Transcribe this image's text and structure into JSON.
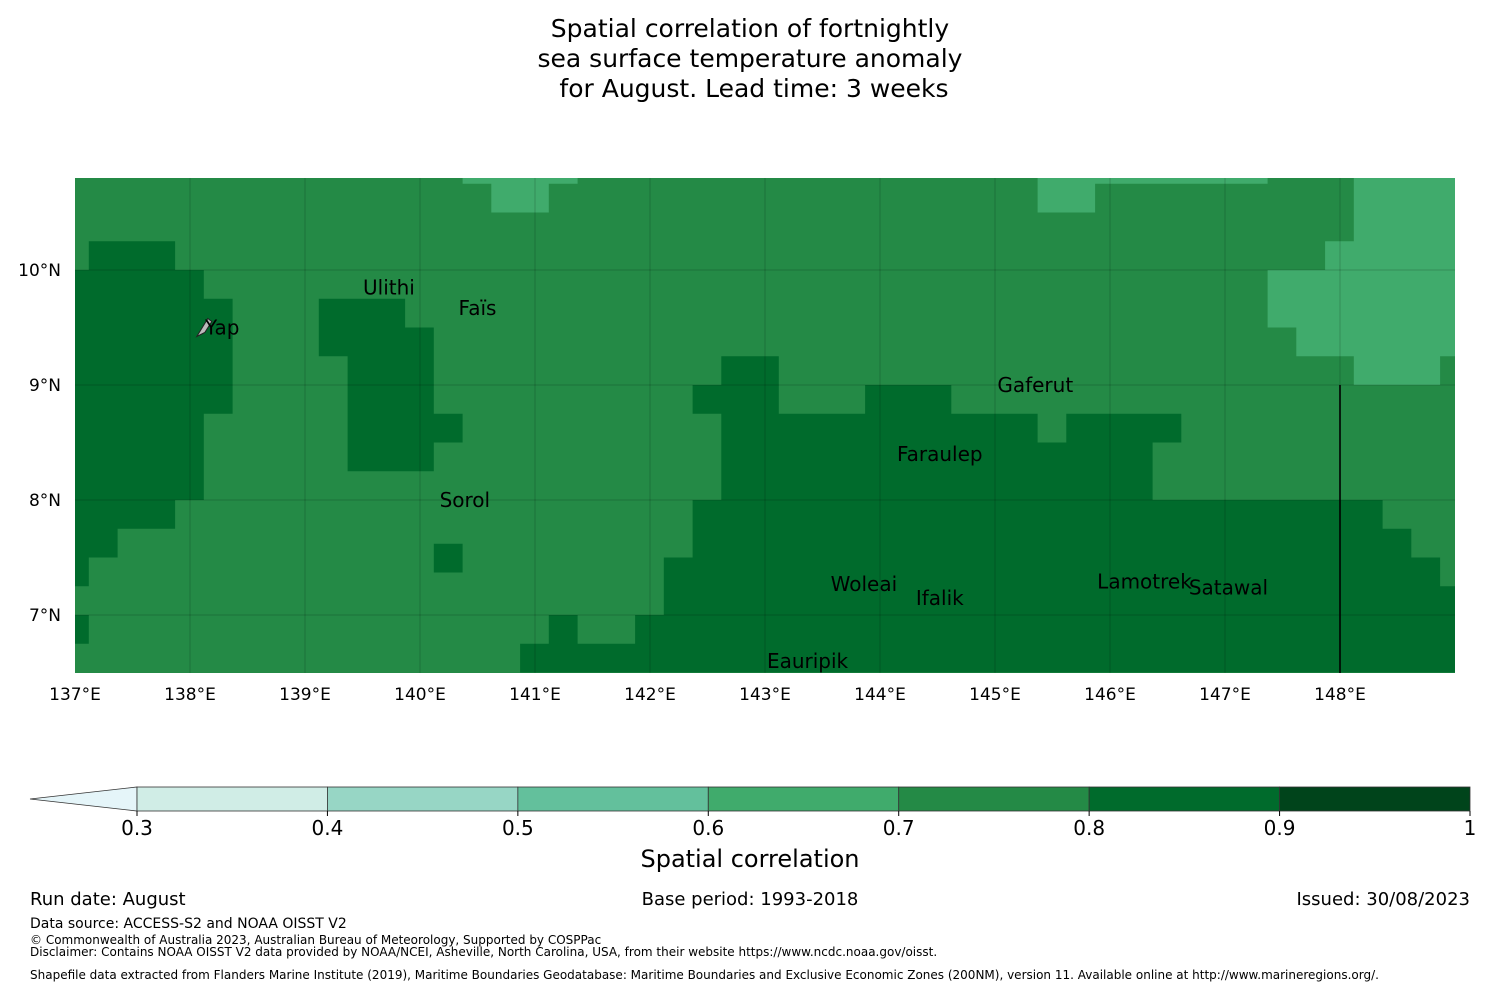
{
  "title_lines": [
    "Spatial correlation of fortnightly",
    "sea surface temperature anomaly",
    " for August. Lead time: 3 weeks"
  ],
  "lat_labels": [
    "10°N",
    "9°N",
    "8°N",
    "7°N"
  ],
  "lon_labels": [
    "137°E",
    "138°E",
    "139°E",
    "140°E",
    "141°E",
    "142°E",
    "143°E",
    "144°E",
    "145°E",
    "146°E",
    "147°E",
    "148°E"
  ],
  "places": [
    {
      "name": "Yap",
      "lon": 138.28,
      "lat": 9.5
    },
    {
      "name": "Ulithi",
      "lon": 139.73,
      "lat": 9.85
    },
    {
      "name": "Faïs",
      "lon": 140.5,
      "lat": 9.67
    },
    {
      "name": "Gaferut",
      "lon": 145.35,
      "lat": 9.0
    },
    {
      "name": "Faraulep",
      "lon": 144.52,
      "lat": 8.4
    },
    {
      "name": "Sorol",
      "lon": 140.39,
      "lat": 8.0
    },
    {
      "name": "Woleai",
      "lon": 143.86,
      "lat": 7.27
    },
    {
      "name": "Ifalik",
      "lon": 144.52,
      "lat": 7.15
    },
    {
      "name": "Lamotrek",
      "lon": 146.3,
      "lat": 7.29
    },
    {
      "name": "Satawal",
      "lon": 147.03,
      "lat": 7.24
    },
    {
      "name": "Eauripik",
      "lon": 143.37,
      "lat": 6.6
    }
  ],
  "colorbar": {
    "title": "Spatial correlation",
    "ticks": [
      "0.3",
      "0.4",
      "0.5",
      "0.6",
      "0.7",
      "0.8",
      "0.9",
      "1"
    ],
    "colors": [
      "#d0ede6",
      "#97d6c5",
      "#63c09c",
      "#40ab6c",
      "#248a46",
      "#006b2c",
      "#00441b"
    ],
    "under_color": "#e5f5f9"
  },
  "footer": {
    "run_date": "Run date: August",
    "base_period": "Base period: 1993-2018",
    "issued": "Issued: 30/08/2023",
    "data_source": "Data source: ACCESS-S2 and NOAA OISST V2",
    "copyright": "© Commonwealth of Australia 2023, Australian Bureau of Meteorology, Supported by COSPPac",
    "disclaimer": "Disclaimer: Contains NOAA OISST V2 data provided by NOAA/NCEI, Asheville, North Carolina, USA, from their website https://www.ncdc.noaa.gov/oisst.",
    "shapefile": "Shapefile data extracted from Flanders Marine Institute (2019), Maritime Boundaries Geodatabase: Maritime Boundaries and Exclusive Economic Zones (200NM), version 11. Available online at http://www.marineregions.org/."
  },
  "map": {
    "lon_range": [
      137.0,
      149.0
    ],
    "lat_range": [
      6.5,
      10.8
    ],
    "base_class": "0.7-0.8",
    "regions": [
      {
        "class": "0.6-0.7",
        "polygon": [
          [
            140.37,
            10.8
          ],
          [
            141.37,
            10.8
          ],
          [
            141.37,
            10.75
          ],
          [
            141.12,
            10.75
          ],
          [
            141.12,
            10.5
          ],
          [
            140.62,
            10.5
          ],
          [
            140.62,
            10.75
          ],
          [
            140.37,
            10.75
          ]
        ]
      },
      {
        "class": "0.6-0.7",
        "polygon": [
          [
            145.37,
            10.8
          ],
          [
            147.37,
            10.8
          ],
          [
            147.37,
            10.75
          ],
          [
            145.87,
            10.75
          ],
          [
            145.87,
            10.5
          ],
          [
            145.37,
            10.5
          ]
        ]
      },
      {
        "class": "0.6-0.7",
        "polygon": [
          [
            148.12,
            10.8
          ],
          [
            149.0,
            10.8
          ],
          [
            149.0,
            9.25
          ],
          [
            148.87,
            9.25
          ],
          [
            148.87,
            9.0
          ],
          [
            148.12,
            9.0
          ],
          [
            148.12,
            9.25
          ],
          [
            147.62,
            9.25
          ],
          [
            147.62,
            9.5
          ],
          [
            147.37,
            9.5
          ],
          [
            147.37,
            10.0
          ],
          [
            147.87,
            10.0
          ],
          [
            147.87,
            10.25
          ],
          [
            148.12,
            10.25
          ]
        ]
      },
      {
        "class": "0.8-0.9",
        "polygon": [
          [
            137.0,
            10.0
          ],
          [
            137.12,
            10.0
          ],
          [
            137.12,
            10.25
          ],
          [
            137.87,
            10.25
          ],
          [
            137.87,
            10.0
          ],
          [
            138.12,
            10.0
          ],
          [
            138.12,
            9.75
          ],
          [
            138.37,
            9.75
          ],
          [
            138.37,
            8.75
          ],
          [
            138.12,
            8.75
          ],
          [
            138.12,
            8.0
          ],
          [
            137.87,
            8.0
          ],
          [
            137.87,
            7.75
          ],
          [
            137.37,
            7.75
          ],
          [
            137.37,
            7.5
          ],
          [
            137.12,
            7.5
          ],
          [
            137.12,
            7.25
          ],
          [
            137.0,
            7.25
          ]
        ]
      },
      {
        "class": "0.8-0.9",
        "polygon": [
          [
            137.0,
            7.0
          ],
          [
            137.12,
            7.0
          ],
          [
            137.12,
            6.75
          ],
          [
            137.0,
            6.75
          ]
        ]
      },
      {
        "class": "0.8-0.9",
        "polygon": [
          [
            139.12,
            9.75
          ],
          [
            139.87,
            9.75
          ],
          [
            139.87,
            9.5
          ],
          [
            140.12,
            9.5
          ],
          [
            140.12,
            8.75
          ],
          [
            140.37,
            8.75
          ],
          [
            140.37,
            8.5
          ],
          [
            140.12,
            8.5
          ],
          [
            140.12,
            8.25
          ],
          [
            139.37,
            8.25
          ],
          [
            139.37,
            9.25
          ],
          [
            139.12,
            9.25
          ]
        ]
      },
      {
        "class": "0.8-0.9",
        "polygon": [
          [
            140.12,
            7.62
          ],
          [
            140.37,
            7.62
          ],
          [
            140.37,
            7.37
          ],
          [
            140.12,
            7.37
          ]
        ]
      },
      {
        "class": "0.8-0.9",
        "polygon": [
          [
            142.62,
            9.25
          ],
          [
            143.12,
            9.25
          ],
          [
            143.12,
            8.75
          ],
          [
            143.87,
            8.75
          ],
          [
            143.87,
            9.0
          ],
          [
            144.62,
            9.0
          ],
          [
            144.62,
            8.75
          ],
          [
            145.37,
            8.75
          ],
          [
            145.37,
            8.5
          ],
          [
            145.62,
            8.5
          ],
          [
            145.62,
            8.75
          ],
          [
            146.62,
            8.75
          ],
          [
            146.62,
            8.5
          ],
          [
            146.37,
            8.5
          ],
          [
            146.37,
            8.0
          ],
          [
            148.37,
            8.0
          ],
          [
            148.37,
            7.75
          ],
          [
            148.62,
            7.75
          ],
          [
            148.62,
            7.5
          ],
          [
            148.87,
            7.5
          ],
          [
            148.87,
            7.25
          ],
          [
            149.0,
            7.25
          ],
          [
            149.0,
            6.5
          ],
          [
            140.87,
            6.5
          ],
          [
            140.87,
            6.75
          ],
          [
            141.12,
            6.75
          ],
          [
            141.12,
            7.0
          ],
          [
            141.37,
            7.0
          ],
          [
            141.37,
            6.75
          ],
          [
            141.87,
            6.75
          ],
          [
            141.87,
            7.0
          ],
          [
            142.12,
            7.0
          ],
          [
            142.12,
            7.5
          ],
          [
            142.37,
            7.5
          ],
          [
            142.37,
            8.0
          ],
          [
            142.62,
            8.0
          ],
          [
            142.62,
            8.75
          ],
          [
            142.37,
            8.75
          ],
          [
            142.37,
            9.0
          ],
          [
            142.62,
            9.0
          ]
        ]
      }
    ],
    "boundary_lon": 148.0,
    "boundary_lat_top": 9.0
  }
}
